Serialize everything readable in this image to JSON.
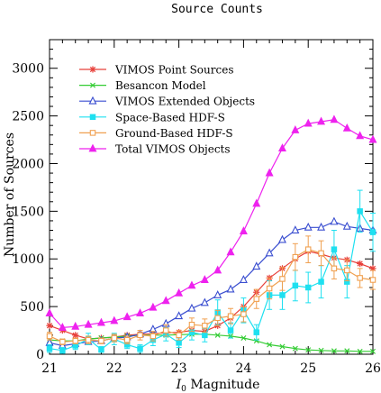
{
  "chart_data": {
    "type": "line",
    "title": "Source Counts",
    "xlabel_var": "I",
    "xlabel_sub": "0",
    "xlabel_rest": " Magnitude",
    "ylabel": "Number of Sources",
    "xlim": [
      21,
      26
    ],
    "ylim": [
      0,
      3300
    ],
    "xticks": [
      21,
      22,
      23,
      24,
      25,
      26
    ],
    "yticks": [
      0,
      500,
      1000,
      1500,
      2000,
      2500,
      3000
    ],
    "legend_position": "top-left",
    "series": [
      {
        "name": "VIMOS Point Sources",
        "color": "#e8403a",
        "marker": "star",
        "x": [
          21.0,
          21.2,
          21.4,
          21.6,
          21.8,
          22.0,
          22.2,
          22.4,
          22.6,
          22.8,
          23.0,
          23.2,
          23.4,
          23.6,
          23.8,
          24.0,
          24.2,
          24.4,
          24.6,
          24.8,
          25.0,
          25.2,
          25.4,
          25.6,
          25.8,
          26.0
        ],
        "y": [
          300,
          250,
          200,
          160,
          170,
          180,
          200,
          210,
          215,
          225,
          230,
          250,
          240,
          300,
          380,
          500,
          650,
          800,
          900,
          1000,
          1080,
          1050,
          1010,
          990,
          950,
          900
        ]
      },
      {
        "name": "Besancon Model",
        "color": "#33cc33",
        "marker": "x",
        "x": [
          21.0,
          21.2,
          21.4,
          21.6,
          21.8,
          22.0,
          22.2,
          22.4,
          22.6,
          22.8,
          23.0,
          23.2,
          23.4,
          23.6,
          23.8,
          24.0,
          24.2,
          24.4,
          24.6,
          24.8,
          25.0,
          25.2,
          25.4,
          25.6,
          25.8,
          26.0
        ],
        "y": [
          150,
          140,
          140,
          160,
          170,
          180,
          190,
          200,
          200,
          200,
          205,
          210,
          210,
          200,
          190,
          170,
          140,
          100,
          80,
          60,
          45,
          40,
          35,
          35,
          30,
          30
        ]
      },
      {
        "name": "VIMOS Extended Objects",
        "color": "#3a4ed0",
        "marker": "triangle-open",
        "x": [
          21.0,
          21.2,
          21.4,
          21.6,
          21.8,
          22.0,
          22.2,
          22.4,
          22.6,
          22.8,
          23.0,
          23.2,
          23.4,
          23.6,
          23.8,
          24.0,
          24.2,
          24.4,
          24.6,
          24.8,
          25.0,
          25.2,
          25.4,
          25.6,
          25.8,
          26.0
        ],
        "y": [
          120,
          90,
          110,
          130,
          140,
          170,
          180,
          210,
          260,
          320,
          400,
          480,
          540,
          620,
          680,
          780,
          920,
          1060,
          1200,
          1300,
          1330,
          1330,
          1390,
          1340,
          1320,
          1300
        ]
      },
      {
        "name": "Space-Based HDF-S",
        "color": "#1ee0f0",
        "marker": "square-filled",
        "x": [
          21.0,
          21.2,
          21.4,
          21.6,
          21.8,
          22.0,
          22.2,
          22.4,
          22.6,
          22.8,
          23.0,
          23.2,
          23.4,
          23.6,
          23.8,
          24.0,
          24.2,
          24.4,
          24.6,
          24.8,
          25.0,
          25.2,
          25.4,
          25.6,
          25.8,
          26.0
        ],
        "y": [
          60,
          40,
          90,
          160,
          50,
          160,
          100,
          60,
          150,
          210,
          120,
          230,
          200,
          440,
          250,
          460,
          230,
          620,
          620,
          720,
          700,
          760,
          1100,
          760,
          1500,
          1280
        ],
        "err": [
          40,
          30,
          40,
          60,
          30,
          60,
          40,
          40,
          60,
          70,
          50,
          80,
          70,
          130,
          80,
          130,
          80,
          150,
          150,
          160,
          160,
          170,
          200,
          170,
          220,
          200
        ]
      },
      {
        "name": "Ground-Based HDF-S",
        "color": "#f0a050",
        "marker": "square-open",
        "x": [
          21.0,
          21.2,
          21.4,
          21.6,
          21.8,
          22.0,
          22.2,
          22.4,
          22.6,
          22.8,
          23.0,
          23.2,
          23.4,
          23.6,
          23.8,
          24.0,
          24.2,
          24.4,
          24.6,
          24.8,
          25.0,
          25.2,
          25.4,
          25.6,
          25.8,
          26.0
        ],
        "y": [
          190,
          130,
          140,
          150,
          140,
          170,
          150,
          200,
          190,
          250,
          200,
          310,
          300,
          380,
          400,
          420,
          580,
          690,
          790,
          1020,
          1100,
          1060,
          900,
          880,
          800,
          780
        ],
        "err": [
          40,
          30,
          30,
          40,
          30,
          40,
          40,
          50,
          50,
          60,
          50,
          70,
          70,
          80,
          80,
          80,
          100,
          110,
          120,
          140,
          140,
          130,
          110,
          110,
          100,
          100
        ]
      },
      {
        "name": "Total VIMOS Objects",
        "color": "#ee22ee",
        "marker": "triangle-filled",
        "x": [
          21.0,
          21.2,
          21.4,
          21.6,
          21.8,
          22.0,
          22.2,
          22.4,
          22.6,
          22.8,
          23.0,
          23.2,
          23.4,
          23.6,
          23.8,
          24.0,
          24.2,
          24.4,
          24.6,
          24.8,
          25.0,
          25.2,
          25.4,
          25.6,
          25.8,
          26.0
        ],
        "y": [
          430,
          280,
          290,
          310,
          330,
          350,
          390,
          430,
          490,
          560,
          640,
          720,
          780,
          880,
          1070,
          1290,
          1580,
          1900,
          2160,
          2350,
          2420,
          2440,
          2460,
          2370,
          2290,
          2250
        ]
      }
    ]
  }
}
